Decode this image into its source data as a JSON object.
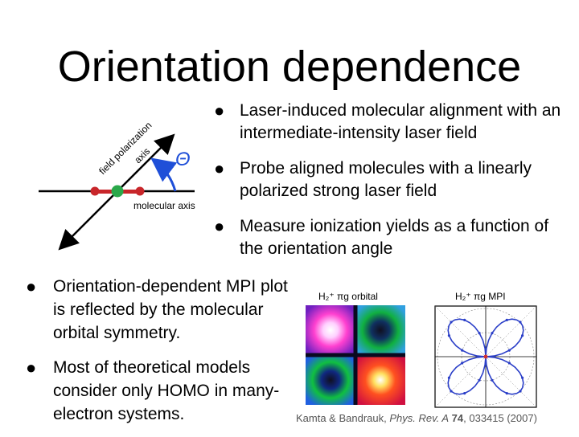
{
  "title": "Orientation dependence",
  "diagram": {
    "axis_label_line1": "field polarization",
    "axis_label_line2": "axis",
    "angle_symbol": "Θ",
    "molecular_axis_label": "molecular axis"
  },
  "bullets_top": [
    "Laser-induced molecular alignment with an intermediate-intensity laser field",
    "Probe aligned molecules with a linearly polarized strong laser field",
    "Measure ionization yields as a function of the orientation angle"
  ],
  "bullets_bottom": [
    "Orientation-dependent MPI plot is reflected by the molecular orbital symmetry.",
    "Most of theoretical models consider only HOMO in many-electron systems."
  ],
  "figures": {
    "orbital_label": "H₂⁺ πg orbital",
    "mpi_label": "H₂⁺ πg MPI"
  },
  "citation": {
    "authors": "Kamta & Bandrauk, ",
    "journal": "Phys. Rev. A",
    "volume": "74",
    "rest": ", 033415 (2007)"
  },
  "colors": {
    "arc": "#1f4fd8",
    "curve": "#2b3fc8",
    "atom_red": "#c8262a",
    "atom_green": "#2aa84a"
  }
}
